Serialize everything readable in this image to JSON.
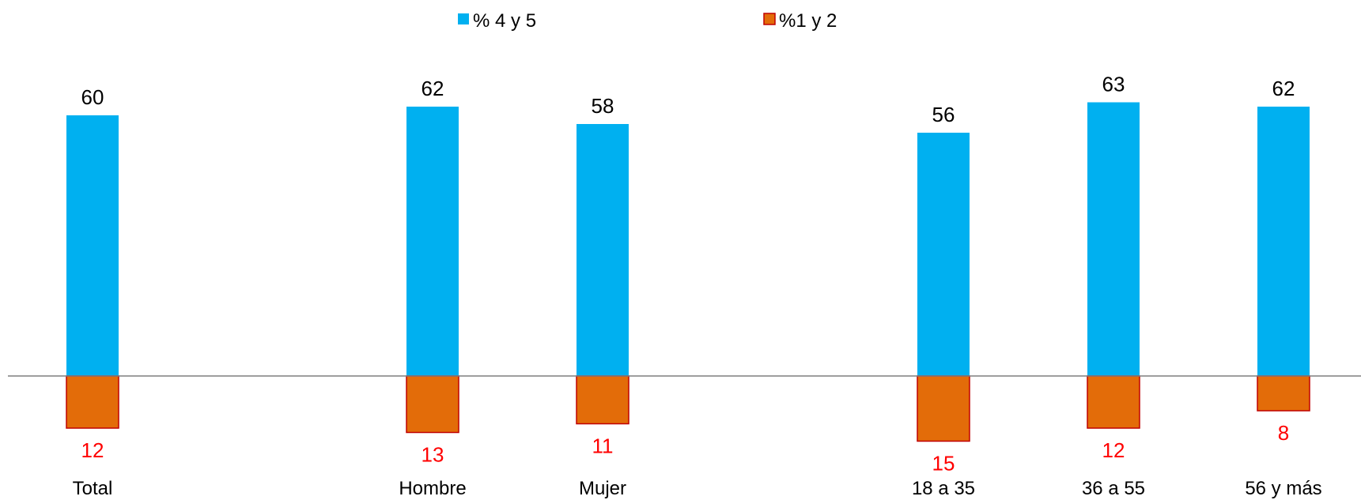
{
  "chart_data": {
    "type": "bar",
    "categories": [
      "Total",
      "Hombre",
      "Mujer",
      "18 a 35",
      "36 a 55",
      "56 y más"
    ],
    "series": [
      {
        "name": "% 4 y 5",
        "values": [
          60,
          62,
          58,
          56,
          63,
          62
        ],
        "color": "#00B0F0",
        "label_color": "#000000",
        "direction": "up"
      },
      {
        "name": "%1 y 2",
        "values": [
          12,
          13,
          11,
          15,
          12,
          8
        ],
        "color": "#E36C09",
        "border_color": "#C00000",
        "label_color": "#FF0000",
        "direction": "down"
      }
    ],
    "groups": [
      [
        0
      ],
      [
        1,
        2
      ],
      [
        3,
        4,
        5
      ]
    ],
    "legend_position": "top-center",
    "grid": false
  }
}
